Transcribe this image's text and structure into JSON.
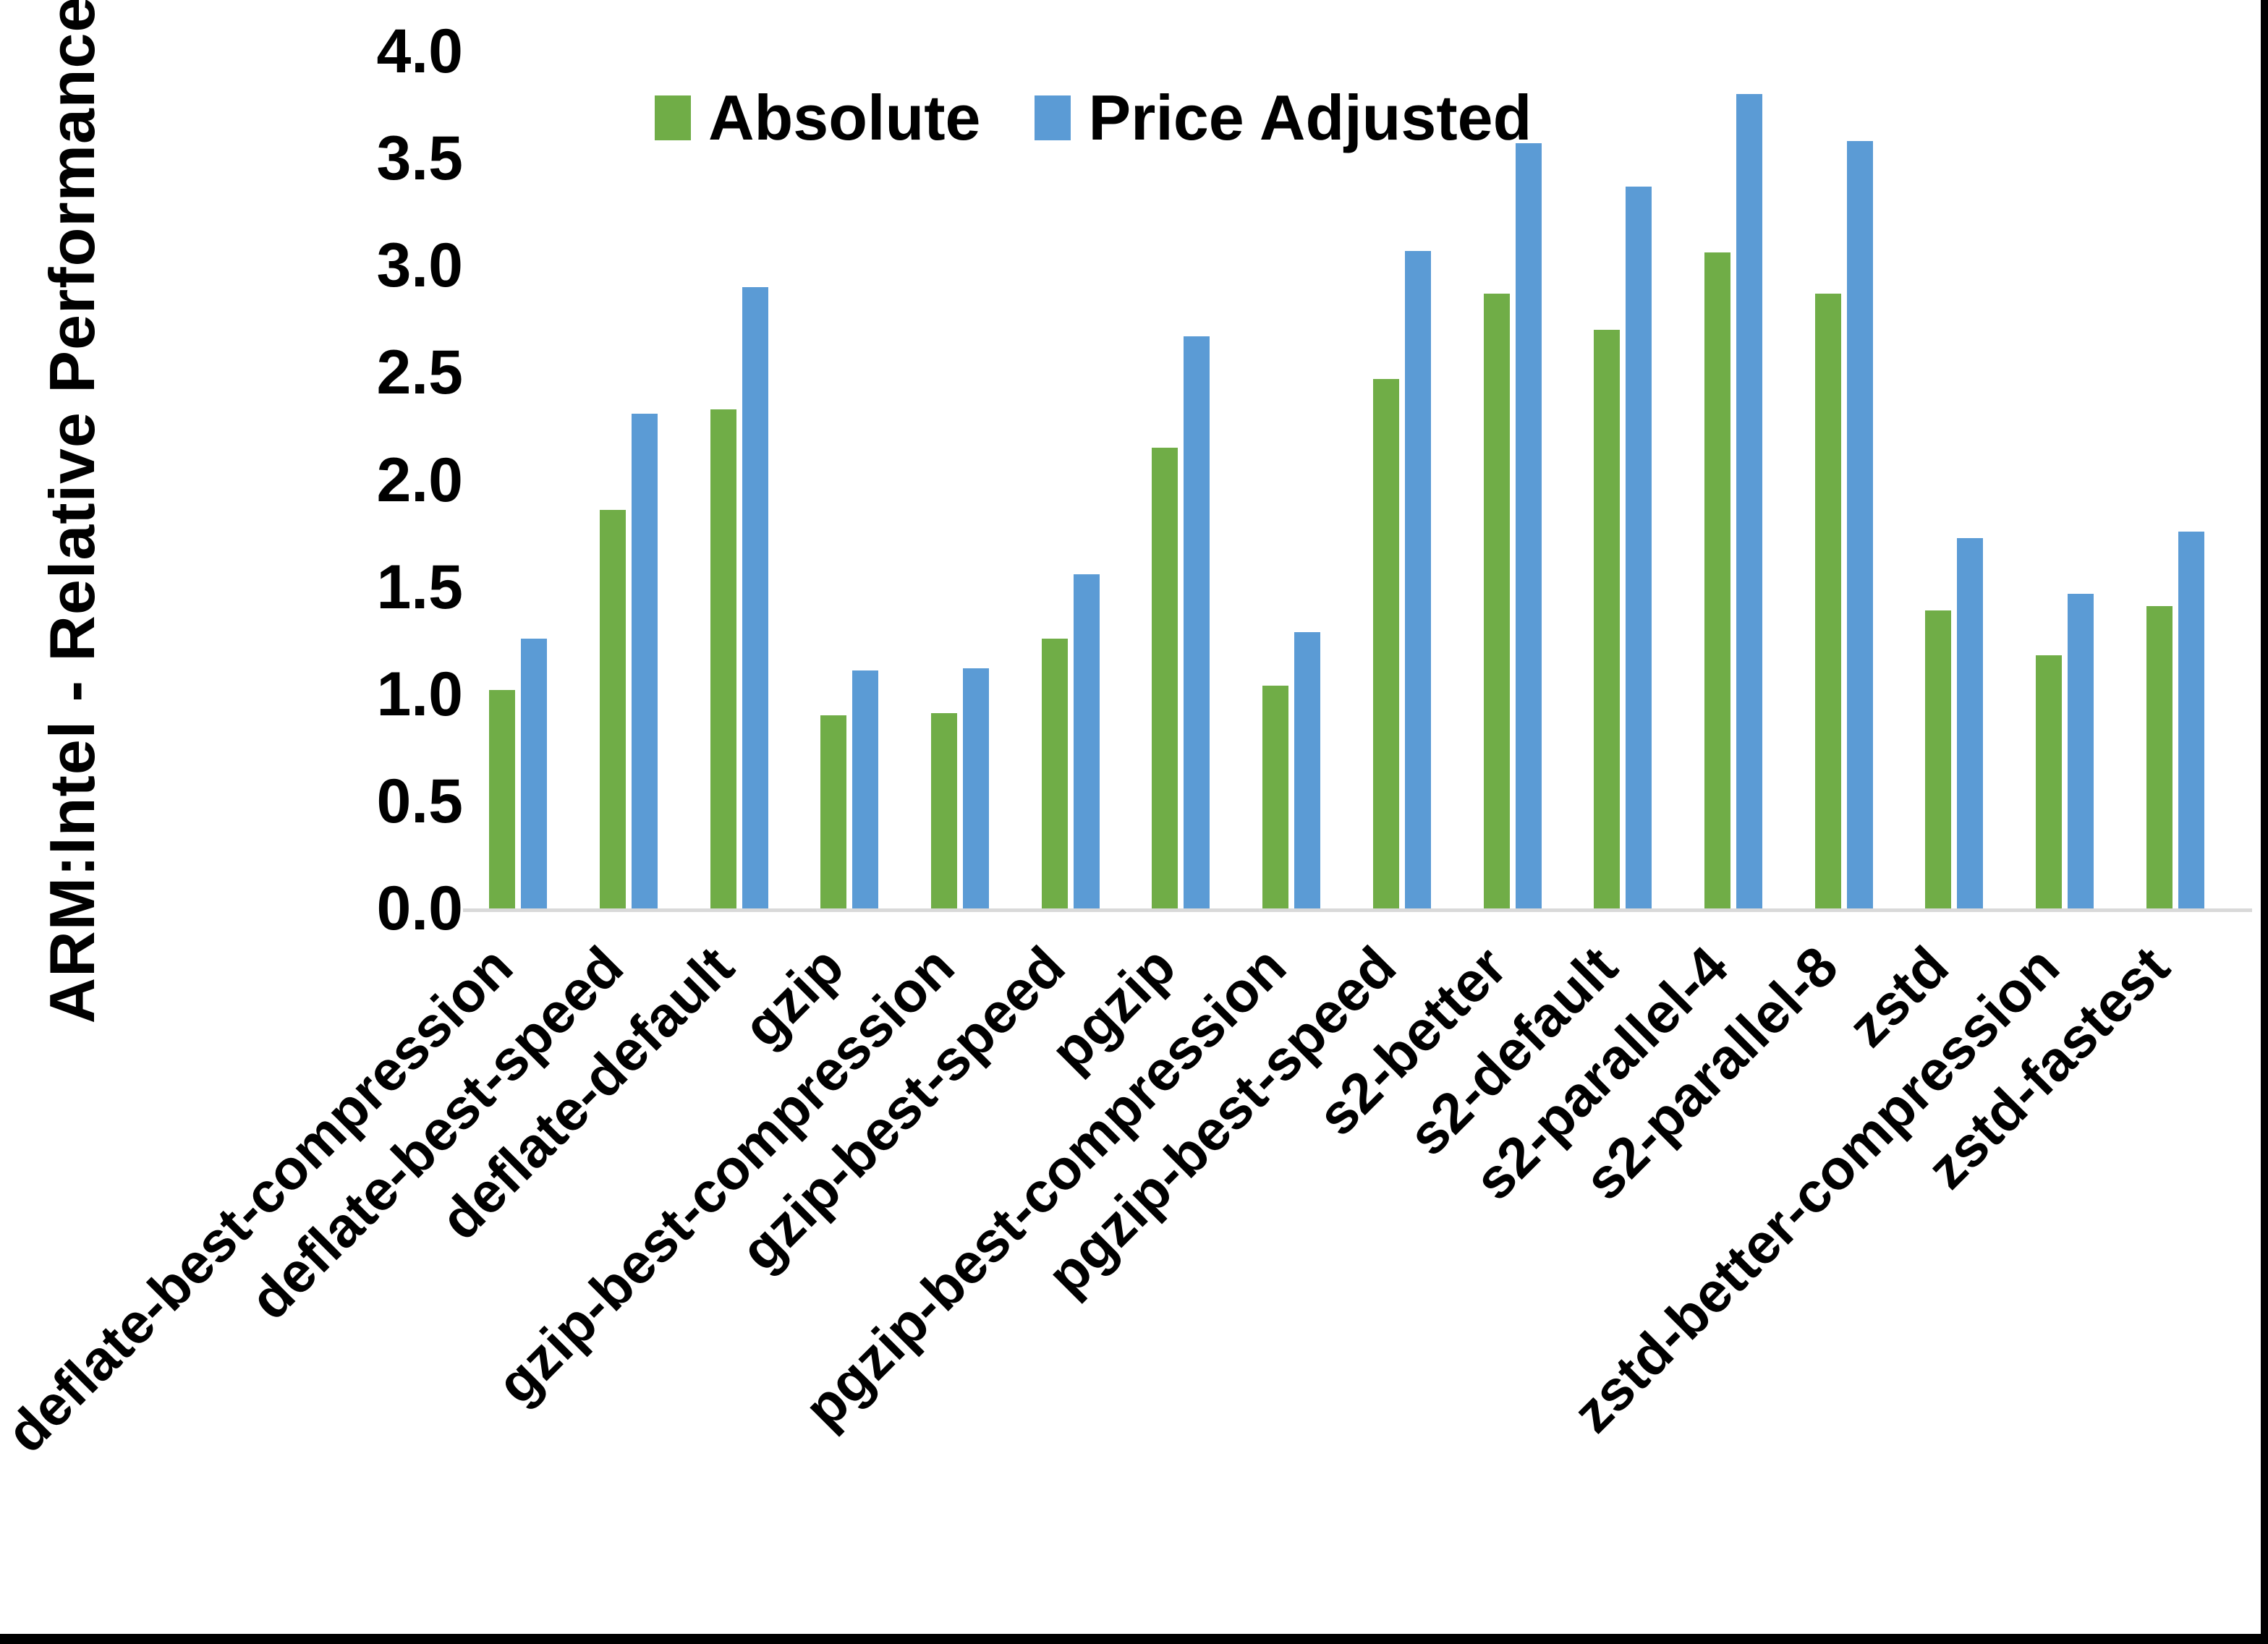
{
  "chart_data": {
    "type": "bar",
    "title": "",
    "ylabel": "ARM:Intel - Relative Performance",
    "xlabel": "",
    "ylim": [
      0.0,
      4.0
    ],
    "ytick_step": 0.5,
    "ytick_labels": [
      "4.0",
      "3.5",
      "3.0",
      "2.5",
      "2.0",
      "1.5",
      "1.0",
      "0.5",
      "0.0"
    ],
    "grid": false,
    "legend_position": "top-inside",
    "background_color": "#ffffff",
    "axis_line_color": "#d9d9d9",
    "text_color": "#000000",
    "categories": [
      "deflate-best-compression",
      "deflate-best-speed",
      "deflate-default",
      "gzip",
      "gzip-best-compression",
      "gzip-best-speed",
      "pgzip",
      "pgzip-best-compression",
      "pgzip-best-speed",
      "s2-better",
      "s2-default",
      "s2-parallel-4",
      "s2-parallel-8",
      "zstd",
      "zstd-better-compression",
      "zstd-fastest"
    ],
    "series": [
      {
        "name": "Absolute",
        "color": "#70ad47",
        "values": [
          1.02,
          1.86,
          2.33,
          0.9,
          0.91,
          1.26,
          2.15,
          1.04,
          2.47,
          2.87,
          2.7,
          3.06,
          2.87,
          1.39,
          1.18,
          1.41
        ]
      },
      {
        "name": "Price Adjusted",
        "color": "#5b9bd5",
        "values": [
          1.26,
          2.31,
          2.9,
          1.11,
          1.12,
          1.56,
          2.67,
          1.29,
          3.07,
          3.57,
          3.37,
          3.8,
          3.58,
          1.73,
          1.47,
          1.76
        ]
      }
    ]
  }
}
